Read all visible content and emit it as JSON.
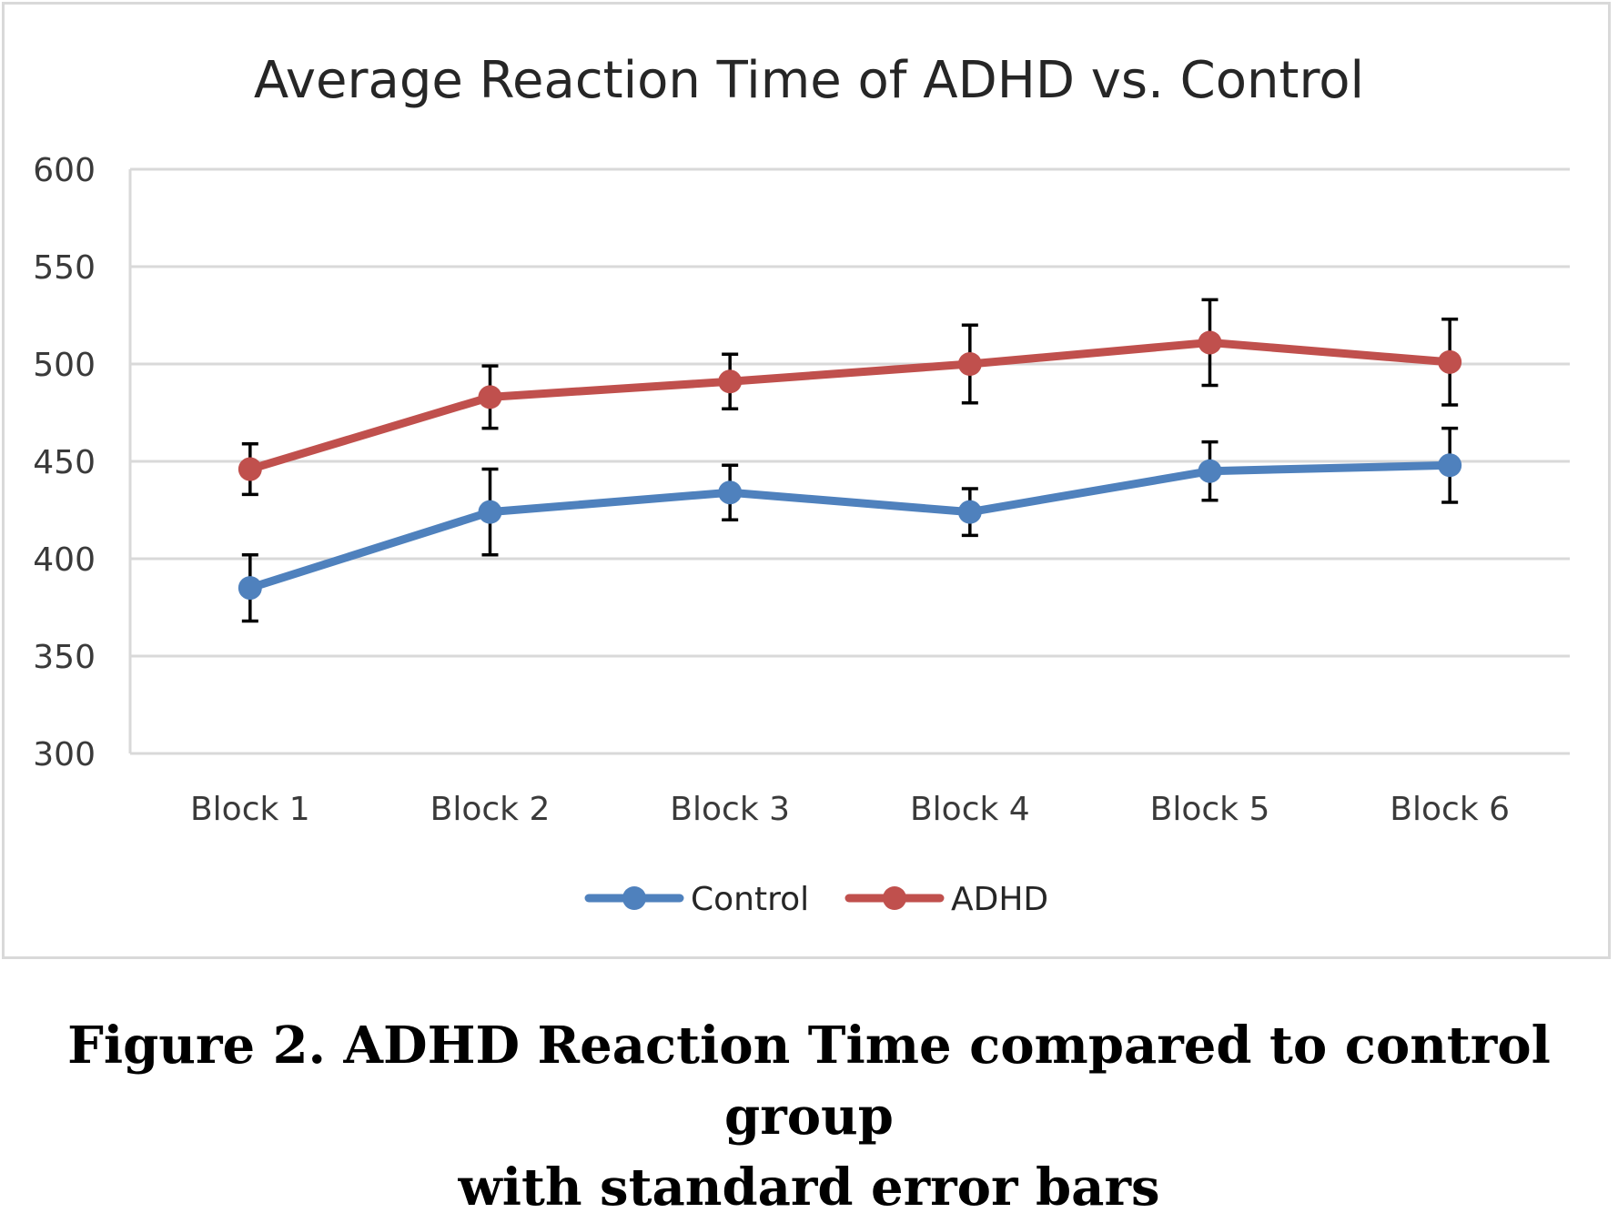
{
  "chart_data": {
    "type": "line",
    "title": "Average Reaction Time of ADHD vs. Control",
    "xlabel": "",
    "ylabel": "",
    "categories": [
      "Block 1",
      "Block 2",
      "Block 3",
      "Block 4",
      "Block 5",
      "Block 6"
    ],
    "ylim": [
      300,
      600
    ],
    "yticks": [
      "300",
      "350",
      "400",
      "450",
      "500",
      "550",
      "600"
    ],
    "grid": true,
    "legend_position": "bottom",
    "series": [
      {
        "name": "Control",
        "color": "#4f81bd",
        "values": [
          385,
          424,
          434,
          424,
          445,
          448
        ],
        "error": [
          17,
          22,
          14,
          12,
          15,
          19
        ]
      },
      {
        "name": "ADHD",
        "color": "#c0504d",
        "values": [
          446,
          483,
          491,
          500,
          511,
          501
        ],
        "error": [
          13,
          16,
          14,
          20,
          22,
          22
        ]
      }
    ]
  },
  "caption": {
    "line1": "Figure 2. ADHD Reaction Time compared to control group",
    "line2": "with standard error bars"
  }
}
